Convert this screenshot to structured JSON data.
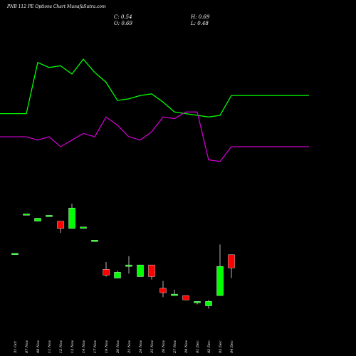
{
  "header": {
    "title": "PNB 112 PE Options Chart MunafaSutra.com",
    "close": "C: 0.54",
    "open": "O: 0.69",
    "high": "H: 0.69",
    "low": "L: 0.48"
  },
  "chart_data": {
    "type": "candlestick",
    "title": "PNB 112 PE Options Chart MunafaSutra.com",
    "categories": [
      "31 Oct",
      "07 Nov",
      "08 Nov",
      "11 Nov",
      "12 Nov",
      "13 Nov",
      "14 Nov",
      "17 Nov",
      "19 Nov",
      "20 Nov",
      "21 Nov",
      "24 Nov",
      "25 Nov",
      "26 Nov",
      "27 Nov",
      "28 Nov",
      "01 Dec",
      "02 Dec",
      "03 Dec",
      "04 Dec"
    ],
    "candles": [
      {
        "open": 1.36,
        "high": 1.36,
        "low": 1.36,
        "close": 1.36,
        "color": "#00ff00"
      },
      {
        "open": 1.63,
        "high": 1.63,
        "low": 1.63,
        "close": 1.63,
        "color": "#00ff00"
      },
      {
        "open": 1.58,
        "high": 1.6,
        "low": 1.58,
        "close": 1.6,
        "color": "#00ff00"
      },
      {
        "open": 1.62,
        "high": 1.62,
        "low": 1.62,
        "close": 1.62,
        "color": "#00ff00"
      },
      {
        "open": 1.58,
        "high": 1.58,
        "low": 1.5,
        "close": 1.53,
        "color": "#ff0000"
      },
      {
        "open": 1.53,
        "high": 1.7,
        "low": 1.53,
        "close": 1.67,
        "color": "#00ff00"
      },
      {
        "open": 1.54,
        "high": 1.54,
        "low": 1.54,
        "close": 1.54,
        "color": "#00ff00"
      },
      {
        "open": 1.45,
        "high": 1.45,
        "low": 1.45,
        "close": 1.45,
        "color": "#00ff00"
      },
      {
        "open": 1.25,
        "high": 1.3,
        "low": 1.2,
        "close": 1.21,
        "color": "#ff0000"
      },
      {
        "open": 1.19,
        "high": 1.24,
        "low": 1.19,
        "close": 1.23,
        "color": "#00ff00"
      },
      {
        "open": 1.28,
        "high": 1.34,
        "low": 1.22,
        "close": 1.27,
        "color": "#00ff00"
      },
      {
        "open": 1.2,
        "high": 1.28,
        "low": 1.2,
        "close": 1.28,
        "color": "#00ff00"
      },
      {
        "open": 1.28,
        "high": 1.28,
        "low": 1.18,
        "close": 1.2,
        "color": "#ff0000"
      },
      {
        "open": 1.12,
        "high": 1.17,
        "low": 1.06,
        "close": 1.09,
        "color": "#ff0000"
      },
      {
        "open": 1.08,
        "high": 1.11,
        "low": 1.07,
        "close": 1.07,
        "color": "#00ff00"
      },
      {
        "open": 1.07,
        "high": 1.07,
        "low": 1.04,
        "close": 1.04,
        "color": "#ff0000"
      },
      {
        "open": 1.02,
        "high": 1.03,
        "low": 1.01,
        "close": 1.03,
        "color": "#00ff00"
      },
      {
        "open": 1.0,
        "high": 1.04,
        "low": 0.98,
        "close": 1.03,
        "color": "#00ff00"
      },
      {
        "open": 1.07,
        "high": 1.42,
        "low": 1.07,
        "close": 1.27,
        "color": "#00ff00"
      },
      {
        "open": 1.35,
        "high": 1.35,
        "low": 1.19,
        "close": 1.26,
        "color": "#ff0000"
      }
    ],
    "lines": [
      {
        "color": "#00ff00",
        "values": [
          2.69,
          2.69,
          3.0,
          2.97,
          2.98,
          2.93,
          3.02,
          2.94,
          2.88,
          2.77,
          2.78,
          2.8,
          2.81,
          2.76,
          2.7,
          2.69,
          2.68,
          2.67,
          2.68,
          2.8
        ]
      },
      {
        "color": "#cc00cc",
        "values": [
          2.55,
          2.55,
          2.53,
          2.55,
          2.49,
          2.53,
          2.57,
          2.55,
          2.67,
          2.62,
          2.55,
          2.53,
          2.58,
          2.67,
          2.66,
          2.7,
          2.7,
          2.41,
          2.4,
          2.49
        ]
      }
    ],
    "line_ylim": [
      2.3,
      3.12
    ],
    "candle_ylim": [
      0.9,
      1.9
    ],
    "grid": false
  }
}
